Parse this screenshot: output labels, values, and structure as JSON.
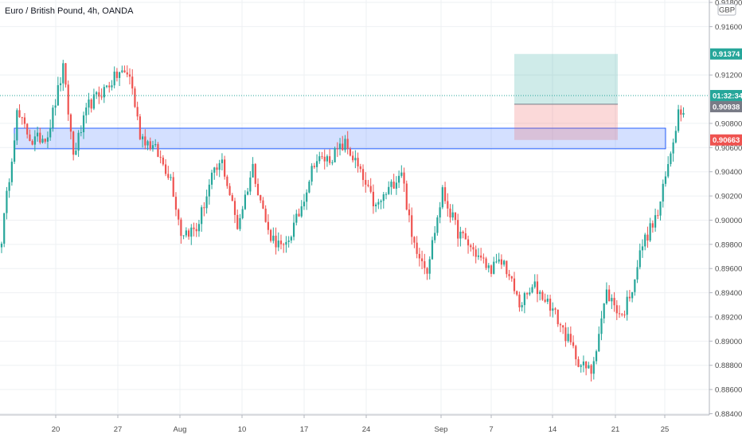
{
  "header": {
    "title": "Euro / British Pound, 4h, OANDA"
  },
  "axis": {
    "currency": "GBP"
  },
  "chart_data": {
    "type": "candlestick",
    "title": "Euro / British Pound, 4h, OANDA",
    "ylim": [
      0.8839,
      0.9182
    ],
    "y_ticks": [
      "0.91800",
      "0.91600",
      "0.91200",
      "0.90800",
      "0.90600",
      "0.90400",
      "0.90200",
      "0.90000",
      "0.89800",
      "0.89600",
      "0.89400",
      "0.89200",
      "0.89000",
      "0.88800",
      "0.88600",
      "0.88400"
    ],
    "x_ticks": [
      "20",
      "27",
      "Aug",
      "10",
      "17",
      "24",
      "Sep",
      "7",
      "14",
      "21",
      "25"
    ],
    "price_tags": {
      "target": "0.91374",
      "countdown": "01:32:34",
      "current": "0.90938",
      "stop": "0.90663"
    },
    "zone": {
      "top": 0.9076,
      "bottom": 0.9059
    },
    "position": {
      "entry": 0.90958,
      "target": 0.91374,
      "stop": 0.90663
    },
    "anchors": [
      [
        0,
        0.8985
      ],
      [
        6,
        0.9088
      ],
      [
        12,
        0.9065
      ],
      [
        18,
        0.9071
      ],
      [
        24,
        0.9125
      ],
      [
        28,
        0.9054
      ],
      [
        34,
        0.9095
      ],
      [
        40,
        0.9108
      ],
      [
        46,
        0.9122
      ],
      [
        50,
        0.912
      ],
      [
        54,
        0.9071
      ],
      [
        60,
        0.9058
      ],
      [
        66,
        0.9035
      ],
      [
        70,
        0.899
      ],
      [
        76,
        0.8992
      ],
      [
        82,
        0.9035
      ],
      [
        86,
        0.9048
      ],
      [
        92,
        0.8995
      ],
      [
        98,
        0.9044
      ],
      [
        104,
        0.899
      ],
      [
        110,
        0.8975
      ],
      [
        116,
        0.9005
      ],
      [
        122,
        0.9049
      ],
      [
        128,
        0.9051
      ],
      [
        134,
        0.9063
      ],
      [
        138,
        0.9048
      ],
      [
        142,
        0.9028
      ],
      [
        146,
        0.901
      ],
      [
        152,
        0.9028
      ],
      [
        156,
        0.9042
      ],
      [
        160,
        0.8985
      ],
      [
        166,
        0.896
      ],
      [
        172,
        0.9023
      ],
      [
        178,
        0.899
      ],
      [
        184,
        0.8975
      ],
      [
        190,
        0.896
      ],
      [
        196,
        0.8965
      ],
      [
        202,
        0.893
      ],
      [
        208,
        0.8945
      ],
      [
        214,
        0.893
      ],
      [
        220,
        0.8905
      ],
      [
        226,
        0.888
      ],
      [
        230,
        0.8875
      ],
      [
        236,
        0.894
      ],
      [
        242,
        0.892
      ],
      [
        246,
        0.8945
      ],
      [
        250,
        0.898
      ],
      [
        256,
        0.9005
      ],
      [
        260,
        0.9045
      ],
      [
        264,
        0.909
      ],
      [
        266,
        0.9094
      ]
    ],
    "volatility": 0.0011,
    "candles_total": 267
  }
}
